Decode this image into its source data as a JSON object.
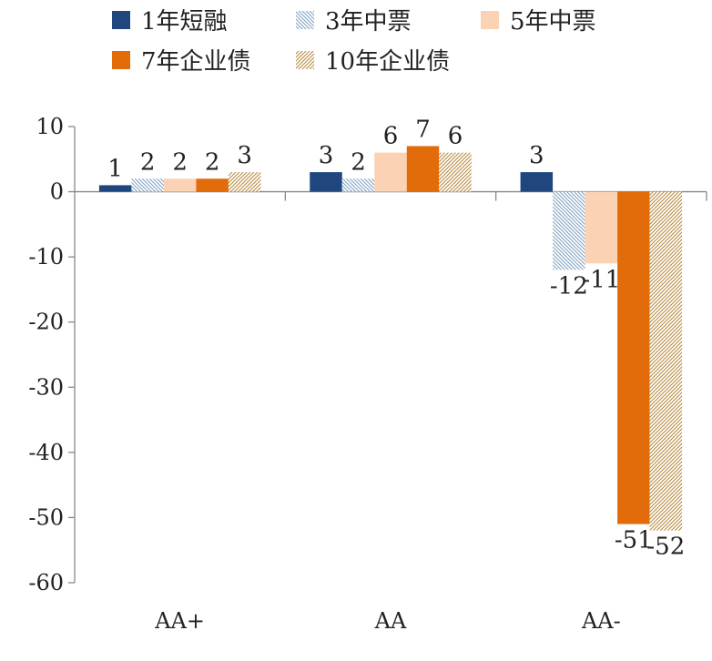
{
  "chart_data": {
    "type": "bar",
    "categories": [
      "AA+",
      "AA",
      "AA-"
    ],
    "series": [
      {
        "name": "1年短融",
        "values": [
          1,
          3,
          3
        ],
        "labels": [
          "1",
          "3",
          "3"
        ],
        "color": "#1f477d",
        "pattern": "solid"
      },
      {
        "name": "3年中票",
        "values": [
          2,
          2,
          -12
        ],
        "labels": [
          "2",
          "2",
          "-12"
        ],
        "color": "#7f9fc0",
        "pattern": "diag-back"
      },
      {
        "name": "5年中票",
        "values": [
          2,
          6,
          -11
        ],
        "labels": [
          "2",
          "6",
          "-11"
        ],
        "color": "#fbd3b4",
        "pattern": "solid"
      },
      {
        "name": "7年企业债",
        "values": [
          2,
          7,
          -51
        ],
        "labels": [
          "2",
          "7",
          "-51"
        ],
        "color": "#e36c0a",
        "pattern": "solid"
      },
      {
        "name": "10年企业债",
        "values": [
          3,
          6,
          -52
        ],
        "labels": [
          "3",
          "6",
          "-52"
        ],
        "color": "#b5883a",
        "pattern": "diag-fwd"
      }
    ],
    "ylim": [
      -60,
      10
    ],
    "yticks": [
      10,
      0,
      -10,
      -20,
      -30,
      -40,
      -50,
      -60
    ],
    "ytick_labels": [
      "10",
      "0",
      "-10",
      "-20",
      "-30",
      "-40",
      "-50",
      "-60"
    ],
    "legend_position": "top",
    "grid": false,
    "title": "",
    "xlabel": "",
    "ylabel": ""
  }
}
